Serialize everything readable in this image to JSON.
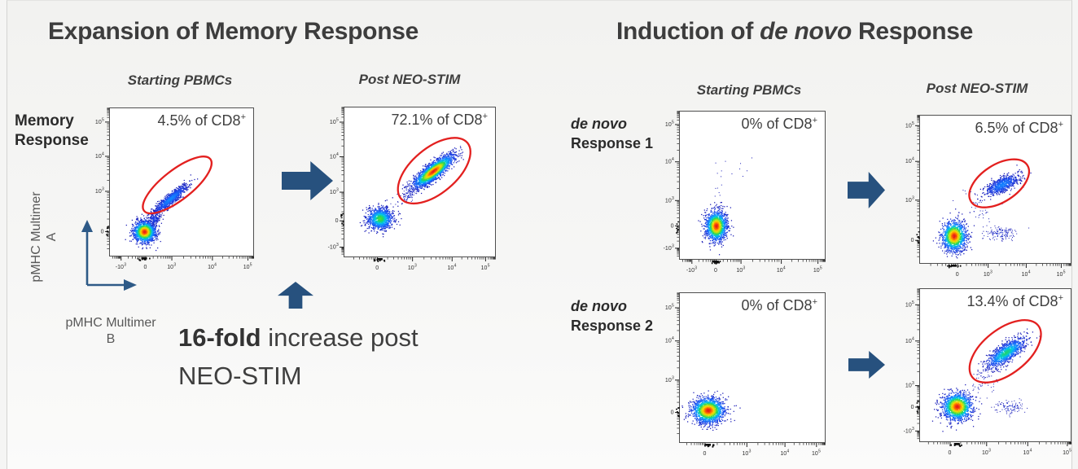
{
  "colors": {
    "arrow_blue": "#27517E",
    "axis_arrow_blue": "#2E5A87",
    "ellipse_red": "#E3201F",
    "title_text": "#3D3D3D",
    "annotation_text": "#404040",
    "plot_border": "#4F4F4F"
  },
  "left_section": {
    "title": "Expansion of Memory Response",
    "columns": [
      "Starting PBMCs",
      "Post NEO-STIM"
    ],
    "row_label_line1": "Memory",
    "row_label_line2": "Response",
    "y_axis_label_line1": "pMHC Multimer",
    "y_axis_label_line2": "A",
    "x_axis_label_line1": "pMHC Multimer",
    "x_axis_label_line2": "B",
    "fold_bold": "16-fold",
    "fold_line1_rest": " increase post",
    "fold_line2": "NEO-STIM"
  },
  "right_section": {
    "title_prefix": "Induction of ",
    "title_italic": "de novo",
    "title_suffix": " Response",
    "columns": [
      "Starting PBMCs",
      "Post NEO-STIM"
    ],
    "rows": [
      {
        "label_italic": "de novo",
        "label_rest": "Response 1"
      },
      {
        "label_italic": "de novo",
        "label_rest": "Response 2"
      }
    ]
  },
  "chart_data": [
    {
      "id": "memory-starting",
      "type": "scatter",
      "seed": 11,
      "column": "Starting PBMCs",
      "xlabel": "pMHC Multimer B",
      "ylabel": "pMHC Multimer A",
      "annotation": {
        "text": "4.5% of CD8",
        "sup": "+"
      },
      "y_ticks": [
        [
          "10^5",
          0.095
        ],
        [
          "10^4",
          0.325
        ],
        [
          "10^3",
          0.56
        ],
        [
          "0",
          0.83
        ]
      ],
      "x_ticks": [
        [
          "-10^3",
          0.08
        ],
        [
          "0",
          0.25
        ],
        [
          "10^3",
          0.43
        ],
        [
          "10^4",
          0.71
        ],
        [
          "10^5",
          0.955
        ]
      ],
      "clusters": [
        {
          "cx": 0.245,
          "cy": 0.835,
          "sx": 0.038,
          "sy": 0.036,
          "rot": 0,
          "n": 1500,
          "peak": 1.0
        },
        {
          "cx": 0.425,
          "cy": 0.615,
          "sx": 0.075,
          "sy": 0.016,
          "rot": -40,
          "n": 850,
          "peak": 0.32
        },
        {
          "cx": 0.31,
          "cy": 0.75,
          "sx": 0.025,
          "sy": 0.02,
          "rot": -45,
          "n": 150,
          "peak": 0.15
        }
      ],
      "ellipse": {
        "cx": 0.47,
        "cy": 0.52,
        "rx": 0.29,
        "ry": 0.1,
        "rot": -38
      }
    },
    {
      "id": "memory-post",
      "type": "scatter",
      "seed": 22,
      "column": "Post NEO-STIM",
      "xlabel": "pMHC Multimer B",
      "ylabel": "pMHC Multimer A",
      "annotation": {
        "text": "72.1% of CD8",
        "sup": "+"
      },
      "y_ticks": [
        [
          "10^5",
          0.1
        ],
        [
          "10^4",
          0.33
        ],
        [
          "10^3",
          0.565
        ],
        [
          "0",
          0.755
        ],
        [
          "-10^3",
          0.93
        ]
      ],
      "x_ticks": [
        [
          "0",
          0.22
        ],
        [
          "10^3",
          0.45
        ],
        [
          "10^4",
          0.71
        ],
        [
          "10^5",
          0.93
        ]
      ],
      "clusters": [
        {
          "cx": 0.24,
          "cy": 0.745,
          "sx": 0.042,
          "sy": 0.036,
          "rot": 0,
          "n": 1100,
          "peak": 0.62
        },
        {
          "cx": 0.59,
          "cy": 0.43,
          "sx": 0.082,
          "sy": 0.024,
          "rot": -38,
          "n": 2200,
          "peak": 1.0
        },
        {
          "cx": 0.43,
          "cy": 0.585,
          "sx": 0.045,
          "sy": 0.02,
          "rot": -38,
          "n": 90,
          "peak": 0.05
        }
      ],
      "ellipse": {
        "cx": 0.595,
        "cy": 0.425,
        "rx": 0.285,
        "ry": 0.15,
        "rot": -40
      }
    },
    {
      "id": "denovo1-starting",
      "type": "scatter",
      "seed": 33,
      "column": "Starting PBMCs",
      "xlabel": "pMHC Multimer B",
      "ylabel": "pMHC Multimer A",
      "annotation": {
        "text": "0% of CD8",
        "sup": "+"
      },
      "y_ticks": [
        [
          "10^5",
          0.09
        ],
        [
          "10^4",
          0.34
        ],
        [
          "10^3",
          0.6
        ],
        [
          "0",
          0.77
        ],
        [
          "-10^3",
          0.92
        ]
      ],
      "x_ticks": [
        [
          "-10^3",
          0.085
        ],
        [
          "0",
          0.25
        ],
        [
          "10^3",
          0.42
        ],
        [
          "10^4",
          0.695
        ],
        [
          "10^5",
          0.945
        ]
      ],
      "clusters": [
        {
          "cx": 0.255,
          "cy": 0.775,
          "sx": 0.036,
          "sy": 0.05,
          "rot": 0,
          "n": 1500,
          "peak": 1.0
        },
        {
          "cx": 0.28,
          "cy": 0.48,
          "sx": 0.02,
          "sy": 0.16,
          "rot": 0,
          "n": 14,
          "peak": 0.02
        },
        {
          "cx": 0.42,
          "cy": 0.42,
          "sx": 0.05,
          "sy": 0.05,
          "rot": 0,
          "n": 6,
          "peak": 0.02
        }
      ],
      "ellipse": null
    },
    {
      "id": "denovo1-post",
      "type": "scatter",
      "seed": 44,
      "column": "Post NEO-STIM",
      "xlabel": "pMHC Multimer B",
      "ylabel": "pMHC Multimer A",
      "annotation": {
        "text": "6.5% of CD8",
        "sup": "+"
      },
      "y_ticks": [
        [
          "10^5",
          0.07
        ],
        [
          "10^4",
          0.31
        ],
        [
          "10^3",
          0.57
        ],
        [
          "0",
          0.84
        ]
      ],
      "x_ticks": [
        [
          "0",
          0.25
        ],
        [
          "10^3",
          0.45
        ],
        [
          "10^4",
          0.7
        ],
        [
          "10^5",
          0.93
        ]
      ],
      "clusters": [
        {
          "cx": 0.23,
          "cy": 0.815,
          "sx": 0.04,
          "sy": 0.05,
          "rot": 0,
          "n": 1300,
          "peak": 1.0
        },
        {
          "cx": 0.545,
          "cy": 0.47,
          "sx": 0.062,
          "sy": 0.024,
          "rot": -26,
          "n": 650,
          "peak": 0.3
        },
        {
          "cx": 0.535,
          "cy": 0.8,
          "sx": 0.05,
          "sy": 0.022,
          "rot": 0,
          "n": 130,
          "peak": 0.07
        },
        {
          "cx": 0.38,
          "cy": 0.63,
          "sx": 0.035,
          "sy": 0.07,
          "rot": -30,
          "n": 45,
          "peak": 0.03
        }
      ],
      "ellipse": {
        "cx": 0.525,
        "cy": 0.46,
        "rx": 0.22,
        "ry": 0.125,
        "rot": -33
      }
    },
    {
      "id": "denovo2-starting",
      "type": "scatter",
      "seed": 55,
      "column": "Starting PBMCs",
      "xlabel": "pMHC Multimer B",
      "ylabel": "pMHC Multimer A",
      "annotation": {
        "text": "0% of CD8",
        "sup": "+"
      },
      "y_ticks": [
        [
          "10^5",
          0.1
        ],
        [
          "10^4",
          0.32
        ],
        [
          "10^3",
          0.58
        ],
        [
          "0",
          0.795
        ]
      ],
      "x_ticks": [
        [
          "0",
          0.175
        ],
        [
          "10^3",
          0.46
        ],
        [
          "10^4",
          0.72
        ],
        [
          "10^5",
          0.935
        ]
      ],
      "clusters": [
        {
          "cx": 0.2,
          "cy": 0.785,
          "sx": 0.055,
          "sy": 0.042,
          "rot": 0,
          "n": 1700,
          "peak": 1.0
        }
      ],
      "ellipse": null
    },
    {
      "id": "denovo2-post",
      "type": "scatter",
      "seed": 66,
      "column": "Post NEO-STIM",
      "xlabel": "pMHC Multimer B",
      "ylabel": "pMHC Multimer A",
      "annotation": {
        "text": "13.4% of CD8",
        "sup": "+"
      },
      "y_ticks": [
        [
          "10^5",
          0.105
        ],
        [
          "10^4",
          0.34
        ],
        [
          "10^3",
          0.63
        ],
        [
          "0",
          0.77
        ],
        [
          "-10^3",
          0.925
        ]
      ],
      "x_ticks": [
        [
          "0",
          0.2
        ],
        [
          "10^3",
          0.44
        ],
        [
          "10^4",
          0.71
        ],
        [
          "10^5",
          0.97
        ]
      ],
      "clusters": [
        {
          "cx": 0.25,
          "cy": 0.77,
          "sx": 0.048,
          "sy": 0.044,
          "rot": 0,
          "n": 1500,
          "peak": 1.0
        },
        {
          "cx": 0.57,
          "cy": 0.42,
          "sx": 0.075,
          "sy": 0.026,
          "rot": -35,
          "n": 1100,
          "peak": 0.55
        },
        {
          "cx": 0.6,
          "cy": 0.77,
          "sx": 0.045,
          "sy": 0.026,
          "rot": 0,
          "n": 100,
          "peak": 0.06
        },
        {
          "cx": 0.43,
          "cy": 0.6,
          "sx": 0.05,
          "sy": 0.05,
          "rot": -35,
          "n": 60,
          "peak": 0.03
        }
      ],
      "ellipse": {
        "cx": 0.565,
        "cy": 0.41,
        "rx": 0.275,
        "ry": 0.145,
        "rot": -38
      }
    }
  ]
}
